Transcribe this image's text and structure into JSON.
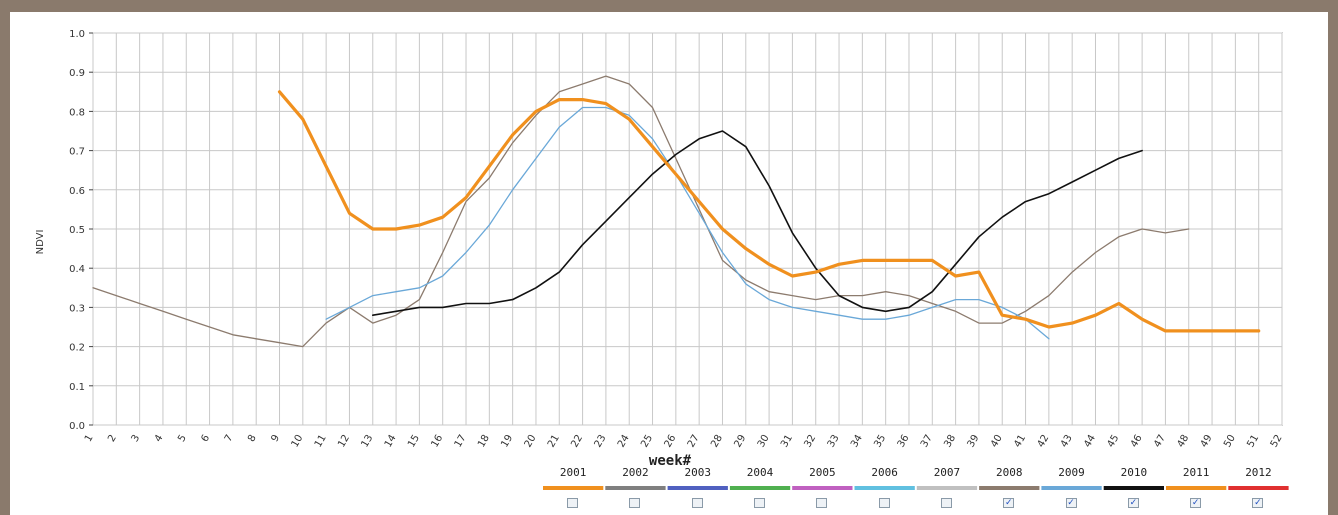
{
  "chart_data": {
    "type": "line",
    "xlabel": "week#",
    "ylabel": "NDVI",
    "xlim": [
      1,
      52
    ],
    "ylim": [
      0.0,
      1.0
    ],
    "grid": true,
    "x_ticks": [
      "1",
      "2",
      "3",
      "4",
      "5",
      "6",
      "7",
      "8",
      "9",
      "10",
      "11",
      "12",
      "13",
      "14",
      "15",
      "16",
      "17",
      "18",
      "19",
      "20",
      "21",
      "22",
      "23",
      "24",
      "25",
      "26",
      "27",
      "28",
      "29",
      "30",
      "31",
      "32",
      "33",
      "34",
      "35",
      "36",
      "37",
      "38",
      "39",
      "40",
      "41",
      "42",
      "43",
      "44",
      "45",
      "46",
      "47",
      "48",
      "49",
      "50",
      "51",
      "52"
    ],
    "y_ticks": [
      "0.0",
      "0.1",
      "0.2",
      "0.3",
      "0.4",
      "0.5",
      "0.6",
      "0.7",
      "0.8",
      "0.9",
      "1.0"
    ],
    "legend_position": "bottom-right",
    "legend": [
      {
        "year": "2001",
        "color": "#f0901e",
        "checked": false
      },
      {
        "year": "2002",
        "color": "#7f7f7f",
        "checked": false
      },
      {
        "year": "2003",
        "color": "#5060c0",
        "checked": false
      },
      {
        "year": "2004",
        "color": "#50b050",
        "checked": false
      },
      {
        "year": "2005",
        "color": "#c060c0",
        "checked": false
      },
      {
        "year": "2006",
        "color": "#60c0e0",
        "checked": false
      },
      {
        "year": "2007",
        "color": "#c0c0c0",
        "checked": false
      },
      {
        "year": "2008",
        "color": "#8c7b6e",
        "checked": true
      },
      {
        "year": "2009",
        "color": "#6aa8d8",
        "checked": true
      },
      {
        "year": "2010",
        "color": "#111111",
        "checked": true
      },
      {
        "year": "2011",
        "color": "#f0901e",
        "checked": true
      },
      {
        "year": "2012",
        "color": "#e03030",
        "checked": true
      }
    ],
    "series": [
      {
        "name": "2008",
        "color": "#8c7b6e",
        "width": 1.3,
        "x": [
          1,
          2,
          3,
          4,
          5,
          6,
          7,
          8,
          9,
          10,
          11,
          12,
          13,
          14,
          15,
          16,
          17,
          18,
          19,
          20,
          21,
          22,
          23,
          24,
          25,
          26,
          27,
          28,
          29,
          30,
          31,
          32,
          33,
          34,
          35,
          36,
          37,
          38,
          39,
          40,
          41,
          42,
          43,
          44,
          45,
          46,
          47,
          48
        ],
        "y": [
          0.35,
          0.33,
          0.31,
          0.29,
          0.27,
          0.25,
          0.23,
          0.22,
          0.21,
          0.2,
          0.26,
          0.3,
          0.26,
          0.28,
          0.32,
          0.44,
          0.57,
          0.63,
          0.72,
          0.79,
          0.85,
          0.87,
          0.89,
          0.87,
          0.81,
          0.68,
          0.55,
          0.42,
          0.37,
          0.34,
          0.33,
          0.32,
          0.33,
          0.33,
          0.34,
          0.33,
          0.31,
          0.29,
          0.26,
          0.26,
          0.29,
          0.33,
          0.39,
          0.44,
          0.48,
          0.5,
          0.49,
          0.5
        ]
      },
      {
        "name": "2009",
        "color": "#6aa8d8",
        "width": 1.3,
        "x": [
          11,
          12,
          13,
          14,
          15,
          16,
          17,
          18,
          19,
          20,
          21,
          22,
          23,
          24,
          25,
          26,
          27,
          28,
          29,
          30,
          31,
          32,
          33,
          34,
          35,
          36,
          37,
          38,
          39,
          40,
          41,
          42
        ],
        "y": [
          0.27,
          0.3,
          0.33,
          0.34,
          0.35,
          0.38,
          0.44,
          0.51,
          0.6,
          0.68,
          0.76,
          0.81,
          0.81,
          0.79,
          0.73,
          0.64,
          0.54,
          0.44,
          0.36,
          0.32,
          0.3,
          0.29,
          0.28,
          0.27,
          0.27,
          0.28,
          0.3,
          0.32,
          0.32,
          0.3,
          0.27,
          0.22
        ]
      },
      {
        "name": "2010",
        "color": "#111111",
        "width": 1.6,
        "x": [
          13,
          14,
          15,
          16,
          17,
          18,
          19,
          20,
          21,
          22,
          23,
          24,
          25,
          26,
          27,
          28,
          29,
          30,
          31,
          32,
          33,
          34,
          35,
          36,
          37,
          38,
          39,
          40,
          41,
          42,
          43,
          44,
          45,
          46
        ],
        "y": [
          0.28,
          0.29,
          0.3,
          0.3,
          0.31,
          0.31,
          0.32,
          0.35,
          0.39,
          0.46,
          0.52,
          0.58,
          0.64,
          0.69,
          0.73,
          0.75,
          0.71,
          0.61,
          0.49,
          0.4,
          0.33,
          0.3,
          0.29,
          0.3,
          0.34,
          0.41,
          0.48,
          0.53,
          0.57,
          0.59,
          0.62,
          0.65,
          0.68,
          0.7
        ]
      },
      {
        "name": "2011",
        "color": "#f0901e",
        "width": 3.2,
        "x": [
          9,
          10,
          11,
          12,
          13,
          14,
          15,
          16,
          17,
          18,
          19,
          20,
          21,
          22,
          23,
          24,
          25,
          26,
          27,
          28,
          29,
          30,
          31,
          32,
          33,
          34,
          35,
          36,
          37,
          38,
          39,
          40,
          41,
          42,
          43,
          44,
          45,
          46,
          47,
          48,
          49,
          50,
          51
        ],
        "y": [
          0.85,
          0.78,
          0.66,
          0.54,
          0.5,
          0.5,
          0.51,
          0.53,
          0.58,
          0.66,
          0.74,
          0.8,
          0.83,
          0.83,
          0.82,
          0.78,
          0.71,
          0.64,
          0.57,
          0.5,
          0.45,
          0.41,
          0.38,
          0.39,
          0.41,
          0.42,
          0.42,
          0.42,
          0.42,
          0.38,
          0.39,
          0.28,
          0.27,
          0.25,
          0.26,
          0.28,
          0.31,
          0.27,
          0.24,
          0.24,
          0.24,
          0.24,
          0.24
        ]
      }
    ]
  }
}
